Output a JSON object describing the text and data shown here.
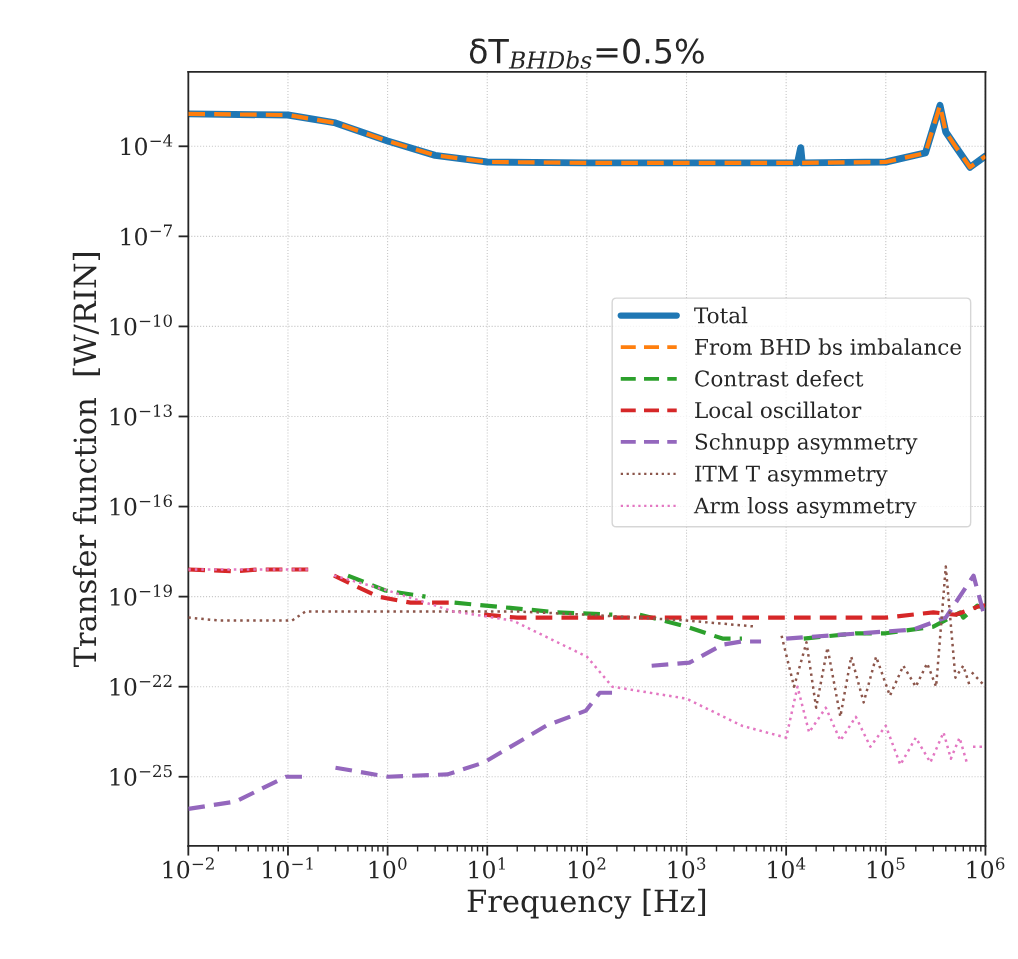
{
  "chart_data": {
    "type": "line",
    "title": "δT$_{BHDbs}$=0.5%",
    "xlabel": "Frequency [Hz]",
    "ylabel": "Transfer function  [W/RIN]",
    "log": "xy",
    "grid": true,
    "legend": "right",
    "xlim": [
      0.01,
      1000000
    ],
    "ylim": [
      5e-28,
      0.03
    ],
    "xticks": [
      {
        "value": 0.01,
        "label": "10$^{−2}$"
      },
      {
        "value": 0.1,
        "label": "10$^{−1}$"
      },
      {
        "value": 1,
        "label": "10$^{0}$"
      },
      {
        "value": 10,
        "label": "10$^{1}$"
      },
      {
        "value": 100,
        "label": "10$^{2}$"
      },
      {
        "value": 1000,
        "label": "10$^{3}$"
      },
      {
        "value": 10000,
        "label": "10$^{4}$"
      },
      {
        "value": 100000,
        "label": "10$^{5}$"
      },
      {
        "value": 1000000,
        "label": "10$^{6}$"
      }
    ],
    "yticks": [
      {
        "value": 1e-25,
        "label": "10$^{−25}$"
      },
      {
        "value": 1e-22,
        "label": "10$^{−22}$"
      },
      {
        "value": 1e-19,
        "label": "10$^{−19}$"
      },
      {
        "value": 1e-16,
        "label": "10$^{−16}$"
      },
      {
        "value": 1e-13,
        "label": "10$^{−13}$"
      },
      {
        "value": 1e-10,
        "label": "10$^{−10}$"
      },
      {
        "value": 1e-07,
        "label": "10$^{−7}$"
      },
      {
        "value": 0.0001,
        "label": "10$^{−4}$"
      }
    ],
    "series": [
      {
        "name": "Total",
        "color": "#1f77b4",
        "line_style": "solid",
        "x": [
          0.01,
          0.1,
          0.3,
          1,
          3,
          10,
          100,
          13000,
          14000,
          14500,
          100000,
          250000,
          350000,
          400000,
          500000,
          700000,
          1000000
        ],
        "values": [
          0.0012,
          0.0011,
          0.0006,
          0.00015,
          5e-05,
          3e-05,
          2.8e-05,
          2.8e-05,
          9e-05,
          2.8e-05,
          3e-05,
          6e-05,
          0.0023,
          0.0003,
          0.0001,
          2e-05,
          4.7e-05
        ]
      },
      {
        "name": "From BHD bs imbalance",
        "color": "#ff7f0e",
        "line_style": "dashed",
        "x": [
          0.01,
          0.1,
          0.3,
          1,
          3,
          10,
          100,
          13000,
          100000,
          250000,
          350000,
          400000,
          500000,
          700000,
          1000000
        ],
        "values": [
          0.0012,
          0.0011,
          0.0006,
          0.00015,
          5e-05,
          3e-05,
          2.8e-05,
          2.8e-05,
          3e-05,
          6e-05,
          0.0023,
          0.0003,
          0.0001,
          2e-05,
          4.7e-05
        ]
      },
      {
        "name": "Contrast defect",
        "color": "#2ca02c",
        "line_style": "dashed",
        "x": [
          0.4,
          0.95,
          2.4,
          2.45,
          4.6,
          4.7,
          50,
          180,
          190,
          330,
          340,
          1000,
          2300,
          3600,
          3650,
          14500,
          15000,
          50000,
          100000,
          300000,
          560000,
          600000,
          830000,
          1000000
        ],
        "values": [
          5e-19,
          1.6e-19,
          1e-19,
          null,
          null,
          6.3e-20,
          3e-20,
          2.5e-20,
          null,
          null,
          2.5e-20,
          1e-20,
          4e-21,
          4e-21,
          null,
          null,
          4e-21,
          6e-21,
          6e-21,
          1e-20,
          3e-20,
          2e-20,
          5e-20,
          4e-20
        ]
      },
      {
        "name": "Local oscillator",
        "color": "#d62728",
        "line_style": "dashed",
        "x": [
          0.01,
          0.03,
          0.05,
          0.166,
          0.167,
          0.289,
          0.29,
          0.8,
          1.7,
          4.8,
          4.9,
          9.2,
          9.3,
          20,
          100000,
          300000,
          500000,
          900000,
          1000000
        ],
        "values": [
          8e-19,
          7e-19,
          8e-19,
          8e-19,
          null,
          null,
          5e-19,
          1e-19,
          6.3e-20,
          6.3e-20,
          null,
          null,
          2.5e-20,
          2e-20,
          2e-20,
          3e-20,
          2.5e-20,
          5e-20,
          5e-20
        ]
      },
      {
        "name": "Schnupp asymmetry",
        "color": "#9467bd",
        "line_style": "dashed",
        "x": [
          0.01,
          0.03,
          0.095,
          0.16,
          0.165,
          0.29,
          0.3,
          1,
          4,
          9.3,
          39,
          98,
          135,
          180,
          182,
          440,
          447,
          1070,
          2300,
          3600,
          5600,
          5700,
          9000,
          10000,
          190000,
          400000,
          760000,
          950000,
          1000000
        ],
        "values": [
          8.5e-27,
          1.5e-26,
          1e-25,
          1e-25,
          null,
          null,
          2e-25,
          1e-25,
          1.2e-25,
          3e-25,
          5e-24,
          1.6e-23,
          6.3e-23,
          6.3e-23,
          null,
          null,
          5e-22,
          6.3e-22,
          2.5e-21,
          3.2e-21,
          3.2e-21,
          null,
          null,
          4e-21,
          8e-21,
          2e-20,
          5e-19,
          3.2e-20,
          3.2e-20
        ]
      },
      {
        "name": "ITM T asymmetry",
        "color": "#8c564b",
        "line_style": "dotted",
        "x": [
          0.01,
          0.02,
          0.11,
          0.15,
          1,
          20,
          100,
          1000,
          5000,
          5500,
          8500,
          9000,
          12000,
          16000,
          20000,
          26000,
          35000,
          45000,
          60000,
          80000,
          110000,
          150000,
          200000,
          260000,
          320000,
          400000,
          500000,
          600000,
          700000,
          710000,
          730000,
          1000000
        ],
        "values": [
          2e-20,
          1.6e-20,
          1.6e-20,
          3.2e-20,
          3.2e-20,
          3.2e-20,
          2.5e-20,
          1.6e-20,
          1e-20,
          null,
          null,
          5e-21,
          1e-22,
          3e-21,
          2e-23,
          2e-21,
          1e-23,
          1e-21,
          3e-23,
          1e-21,
          5e-23,
          5e-22,
          1e-22,
          6e-22,
          1e-22,
          1e-18,
          2e-22,
          5e-22,
          1e-22,
          null,
          3e-22,
          1e-22
        ]
      },
      {
        "name": "Arm loss asymmetry",
        "color": "#e377c2",
        "line_style": "dotted",
        "x": [
          0.01,
          0.166,
          0.167,
          0.289,
          0.29,
          1,
          4.6,
          18,
          100,
          180,
          1000,
          3600,
          10000,
          13000,
          17000,
          25000,
          35000,
          50000,
          70000,
          100000,
          140000,
          200000,
          280000,
          380000,
          450000,
          550000,
          650000,
          730000,
          750000,
          1000000
        ],
        "values": [
          8e-19,
          8e-19,
          null,
          null,
          5e-19,
          1.6e-19,
          3.2e-20,
          1.6e-20,
          1e-21,
          1e-22,
          4e-23,
          5e-24,
          2e-24,
          1e-22,
          3e-24,
          2e-23,
          1.6e-24,
          1e-23,
          1e-24,
          5e-24,
          2.5e-25,
          2e-24,
          3e-25,
          3e-24,
          4e-25,
          2e-24,
          3e-25,
          null,
          1e-24,
          1e-24
        ]
      }
    ]
  }
}
